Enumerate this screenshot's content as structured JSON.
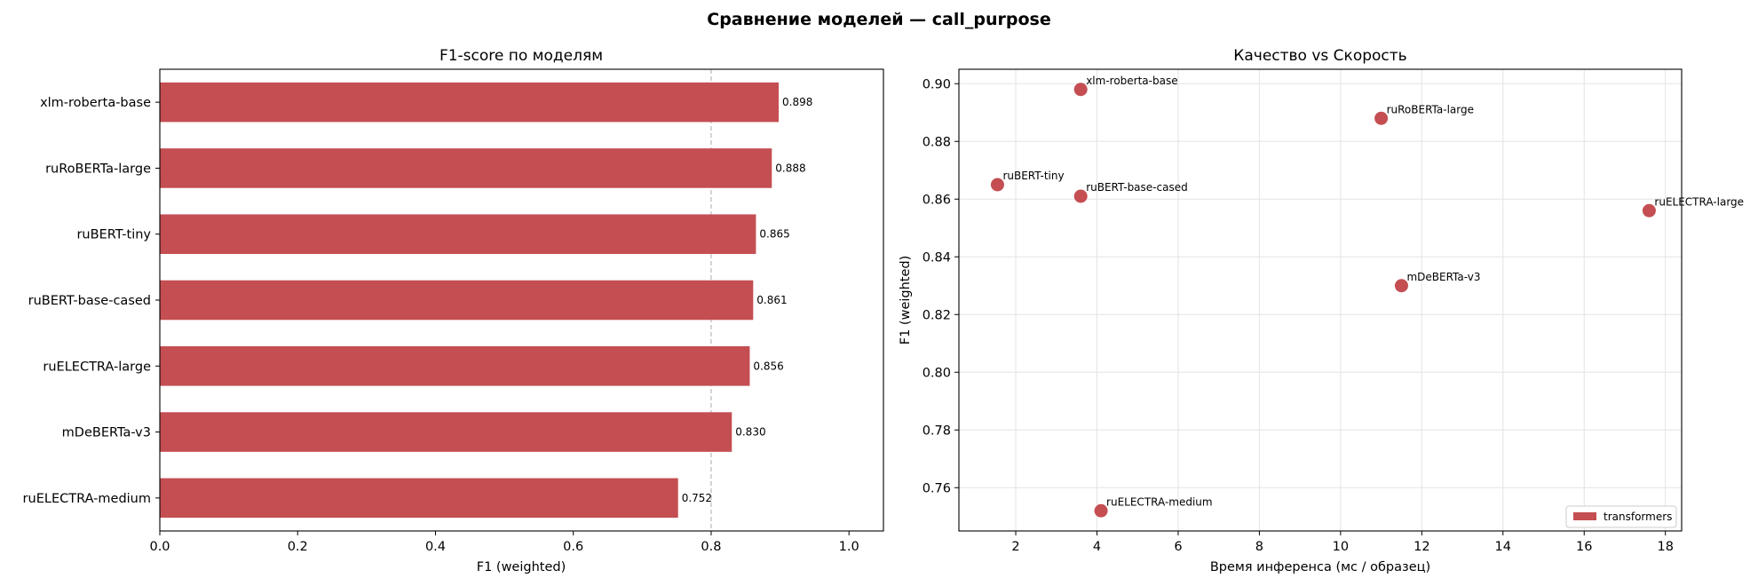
{
  "figure_title": "Сравнение моделей — call_purpose",
  "colors": {
    "accent": "#c44e52",
    "refline": "#aaaaaa"
  },
  "chart_data": [
    {
      "type": "bar",
      "orientation": "horizontal",
      "title": "F1-score по моделям",
      "xlabel": "F1 (weighted)",
      "ylabel": "",
      "xlim": [
        0,
        1.05
      ],
      "xticks": [
        "0.0",
        "0.2",
        "0.4",
        "0.6",
        "0.8",
        "1.0"
      ],
      "reference_line": 0.8,
      "grid": false,
      "categories": [
        "xlm-roberta-base",
        "ruRoBERTa-large",
        "ruBERT-tiny",
        "ruBERT-base-cased",
        "ruELECTRA-large",
        "mDeBERTa-v3",
        "ruELECTRA-medium"
      ],
      "values": [
        0.898,
        0.888,
        0.865,
        0.861,
        0.856,
        0.83,
        0.752
      ],
      "value_labels": [
        "0.898",
        "0.888",
        "0.865",
        "0.861",
        "0.856",
        "0.830",
        "0.752"
      ]
    },
    {
      "type": "scatter",
      "title": "Качество vs Скорость",
      "xlabel": "Время инференса (мс / образец)",
      "ylabel": "F1 (weighted)",
      "xlim": [
        0.6,
        18.4
      ],
      "ylim": [
        0.745,
        0.905
      ],
      "xticks": [
        "2",
        "4",
        "6",
        "8",
        "10",
        "12",
        "14",
        "16",
        "18"
      ],
      "yticks": [
        "0.76",
        "0.78",
        "0.80",
        "0.82",
        "0.84",
        "0.86",
        "0.88",
        "0.90"
      ],
      "grid": true,
      "legend": {
        "position": "lower-right",
        "entries": [
          "transformers"
        ]
      },
      "points": [
        {
          "label": "xlm-roberta-base",
          "x": 3.6,
          "y": 0.898
        },
        {
          "label": "ruRoBERTa-large",
          "x": 11.0,
          "y": 0.888
        },
        {
          "label": "ruBERT-tiny",
          "x": 1.55,
          "y": 0.865
        },
        {
          "label": "ruBERT-base-cased",
          "x": 3.6,
          "y": 0.861
        },
        {
          "label": "ruELECTRA-large",
          "x": 17.6,
          "y": 0.856
        },
        {
          "label": "mDeBERTa-v3",
          "x": 11.5,
          "y": 0.83
        },
        {
          "label": "ruELECTRA-medium",
          "x": 4.1,
          "y": 0.752
        }
      ]
    }
  ]
}
